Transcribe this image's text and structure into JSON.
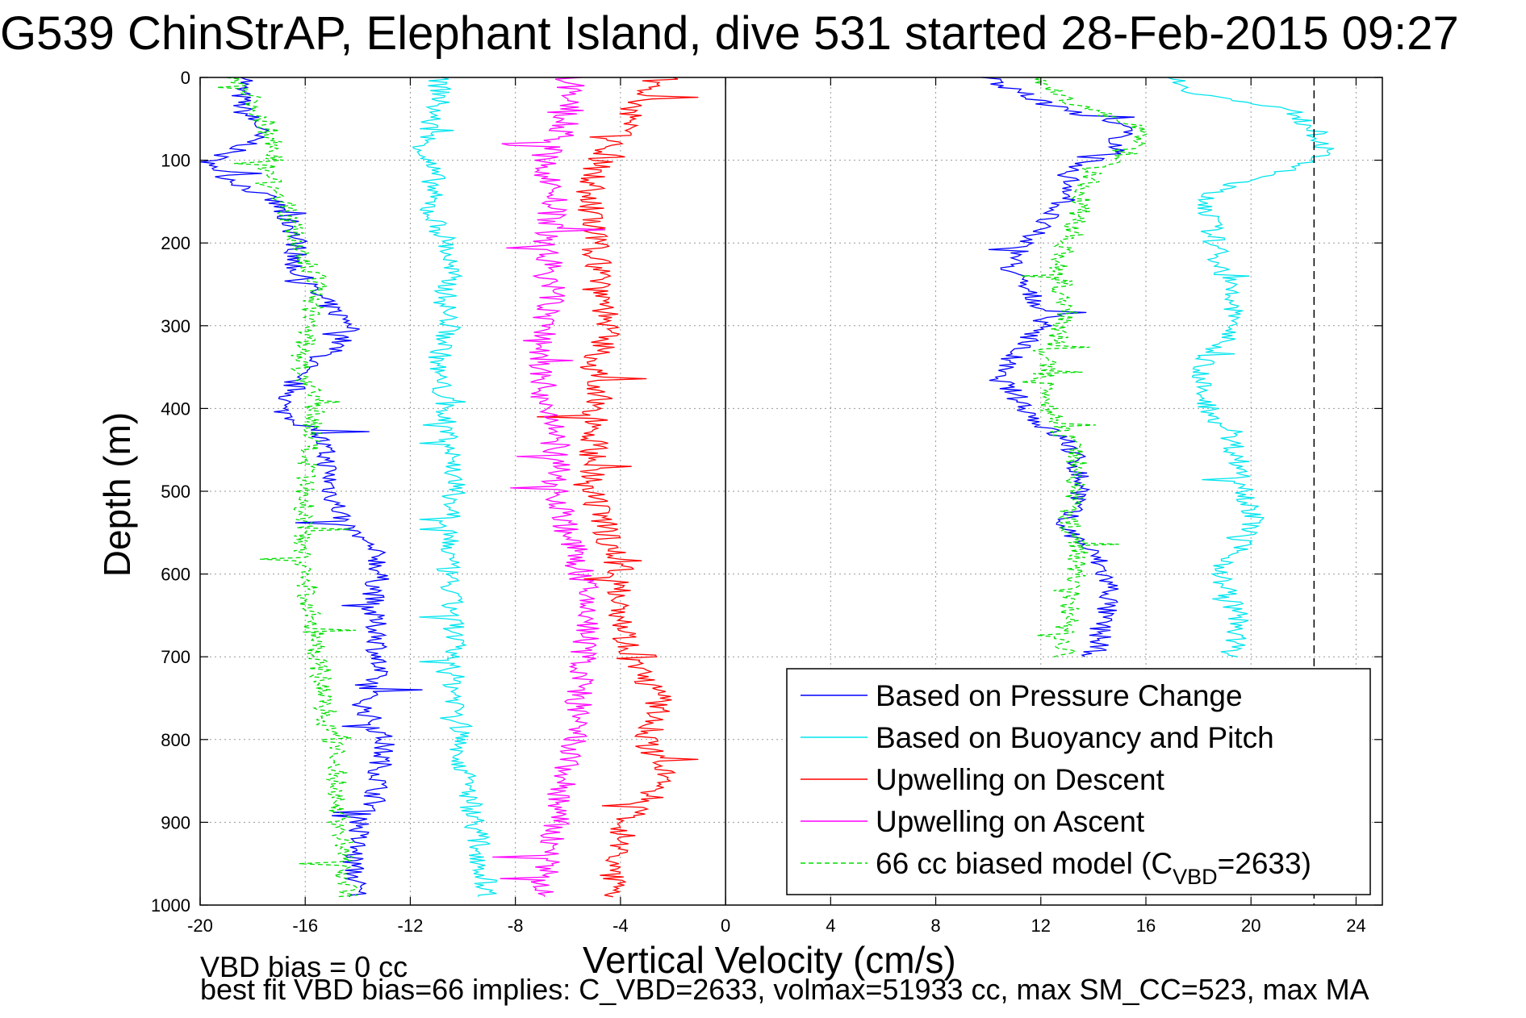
{
  "title": "G539 ChinStrAP, Elephant Island, dive 531 started 28-Feb-2015 09:27",
  "footer": {
    "line1": "VBD bias = 0 cc",
    "line2": "best fit VBD bias=66 implies: C_VBD=2633, volmax=51933 cc, max SM_CC=523, max MA"
  },
  "chart_data": {
    "type": "line",
    "title": "G539 ChinStrAP, Elephant Island, dive 531 started 28-Feb-2015 09:27",
    "xlabel": "Vertical Velocity (cm/s)",
    "ylabel": "Depth (m)",
    "xlim": [
      -20,
      25
    ],
    "ylim": [
      1000,
      0
    ],
    "xticks": [
      -20,
      -16,
      -12,
      -8,
      -4,
      0,
      4,
      8,
      12,
      16,
      20,
      24
    ],
    "yticks": [
      0,
      100,
      200,
      300,
      400,
      500,
      600,
      700,
      800,
      900,
      1000
    ],
    "grid": true,
    "legend_position": "bottom-right",
    "reference_lines": [
      {
        "orientation": "vertical",
        "x": 0,
        "style": "solid"
      },
      {
        "orientation": "vertical",
        "x": 22.4,
        "style": "dashed"
      }
    ],
    "series": [
      {
        "name": "Based on Pressure Change",
        "color": "#0000ff",
        "style": "solid",
        "depth": [
          0,
          10,
          40,
          60,
          80,
          100,
          120,
          150,
          180,
          200,
          230,
          260,
          290,
          300,
          330,
          360,
          380,
          400,
          430,
          460,
          500,
          540,
          580,
          600,
          640,
          680,
          720,
          760,
          800,
          850,
          880,
          900,
          950,
          990
        ],
        "descent": [
          -18,
          -18.5,
          -18.4,
          -17.7,
          -18.1,
          -19.6,
          -19.0,
          -17.2,
          -16.5,
          -16.3,
          -16.4,
          -15.7,
          -14.6,
          -14.1,
          -15.0,
          -16.5,
          -16.4,
          -17.0,
          -15.5,
          -15.2,
          -15.0,
          -14.5,
          -13.2,
          -13.2,
          -13.5,
          -13.2,
          -13.3,
          -13.8,
          -13.0,
          -13.2,
          -13.4,
          -13.9,
          -14.2,
          -14.0
        ],
        "ascent_depth": [
          0,
          30,
          60,
          90,
          110,
          140,
          170,
          200,
          230,
          260,
          290,
          330,
          360,
          390,
          420,
          440,
          460,
          500,
          540,
          580,
          620,
          660,
          700
        ],
        "ascent": [
          10,
          12,
          15.2,
          14.8,
          13,
          13.2,
          12.2,
          11.4,
          10.8,
          11.5,
          12.5,
          11.1,
          10.3,
          11.2,
          12.0,
          13.0,
          13.3,
          13.6,
          12.8,
          14.1,
          14.7,
          14.3,
          14.0
        ]
      },
      {
        "name": "Based on Buoyancy and Pitch",
        "color": "#00e5ee",
        "style": "solid",
        "depth": [
          0,
          20,
          50,
          90,
          120,
          160,
          200,
          240,
          270,
          300,
          350,
          380,
          420,
          480,
          520,
          600,
          660,
          720,
          780,
          820,
          860,
          900,
          950,
          990
        ],
        "descent": [
          -11.0,
          -10.8,
          -11.2,
          -11.5,
          -11.1,
          -11.3,
          -10.6,
          -10.5,
          -10.7,
          -10.5,
          -11.0,
          -10.8,
          -10.6,
          -10.3,
          -10.4,
          -10.6,
          -10.3,
          -10.4,
          -10.1,
          -10.1,
          -9.8,
          -9.5,
          -9.3,
          -9.0
        ],
        "ascent_depth": [
          0,
          20,
          40,
          60,
          80,
          100,
          140,
          200,
          260,
          300,
          340,
          380,
          440,
          480,
          540,
          600,
          660,
          700
        ],
        "ascent": [
          17,
          18,
          21.5,
          22.3,
          22.8,
          22.5,
          18.3,
          18.6,
          19.2,
          19.4,
          18.3,
          18.0,
          19.3,
          19.7,
          20.1,
          18.8,
          19.6,
          19.2
        ]
      },
      {
        "name": "Upwelling on Descent",
        "color": "#ff0000",
        "style": "solid",
        "depth": [
          0,
          20,
          60,
          100,
          140,
          200,
          260,
          300,
          350,
          400,
          450,
          500,
          550,
          600,
          650,
          700,
          750,
          800,
          850,
          900,
          950,
          990
        ],
        "values": [
          -2.5,
          -3.2,
          -3.8,
          -4.8,
          -5.2,
          -5.0,
          -4.6,
          -4.5,
          -5.0,
          -4.9,
          -5.0,
          -5.2,
          -4.5,
          -4.0,
          -3.9,
          -3.7,
          -2.5,
          -3.0,
          -2.3,
          -3.8,
          -4.2,
          -4.5
        ]
      },
      {
        "name": "Upwelling on Ascent",
        "color": "#ff00ff",
        "style": "solid",
        "depth": [
          0,
          20,
          60,
          100,
          140,
          200,
          260,
          300,
          350,
          400,
          450,
          500,
          550,
          600,
          650,
          700,
          750,
          800,
          850,
          900,
          950,
          990
        ],
        "values": [
          -6.0,
          -5.8,
          -6.1,
          -7.0,
          -6.5,
          -6.8,
          -6.6,
          -6.9,
          -7.1,
          -6.8,
          -6.5,
          -6.4,
          -6.0,
          -5.5,
          -5.2,
          -5.4,
          -5.6,
          -5.8,
          -6.2,
          -6.5,
          -6.8,
          -7.0
        ]
      },
      {
        "name": "66 cc biased model (C",
        "name_sub": "VBD",
        "name_tail": "=2633)",
        "color": "#00dd00",
        "style": "dashed",
        "depth": [
          0,
          20,
          50,
          90,
          110,
          150,
          200,
          250,
          300,
          350,
          400,
          450,
          500,
          550,
          600,
          650,
          700,
          750,
          800,
          850,
          900,
          950,
          990
        ],
        "descent": [
          -18.8,
          -18.2,
          -17.6,
          -17.0,
          -17.5,
          -16.8,
          -16.3,
          -15.5,
          -15.9,
          -16.2,
          -15.6,
          -15.9,
          -16.1,
          -16.0,
          -16.0,
          -15.8,
          -15.5,
          -15.3,
          -15.0,
          -14.8,
          -14.7,
          -14.5,
          -14.4
        ],
        "ascent_depth": [
          0,
          30,
          60,
          90,
          110,
          140,
          170,
          200,
          230,
          260,
          290,
          330,
          360,
          390,
          420,
          440,
          460,
          500,
          540,
          580,
          620,
          660,
          700
        ],
        "ascent": [
          12,
          13,
          15.8,
          15.5,
          14,
          13.6,
          13.4,
          13.0,
          12.7,
          12.8,
          13.0,
          12.4,
          12.1,
          12.3,
          12.6,
          13.1,
          13.4,
          13.3,
          13.1,
          13.5,
          13.2,
          13.0,
          12.9
        ]
      }
    ]
  }
}
